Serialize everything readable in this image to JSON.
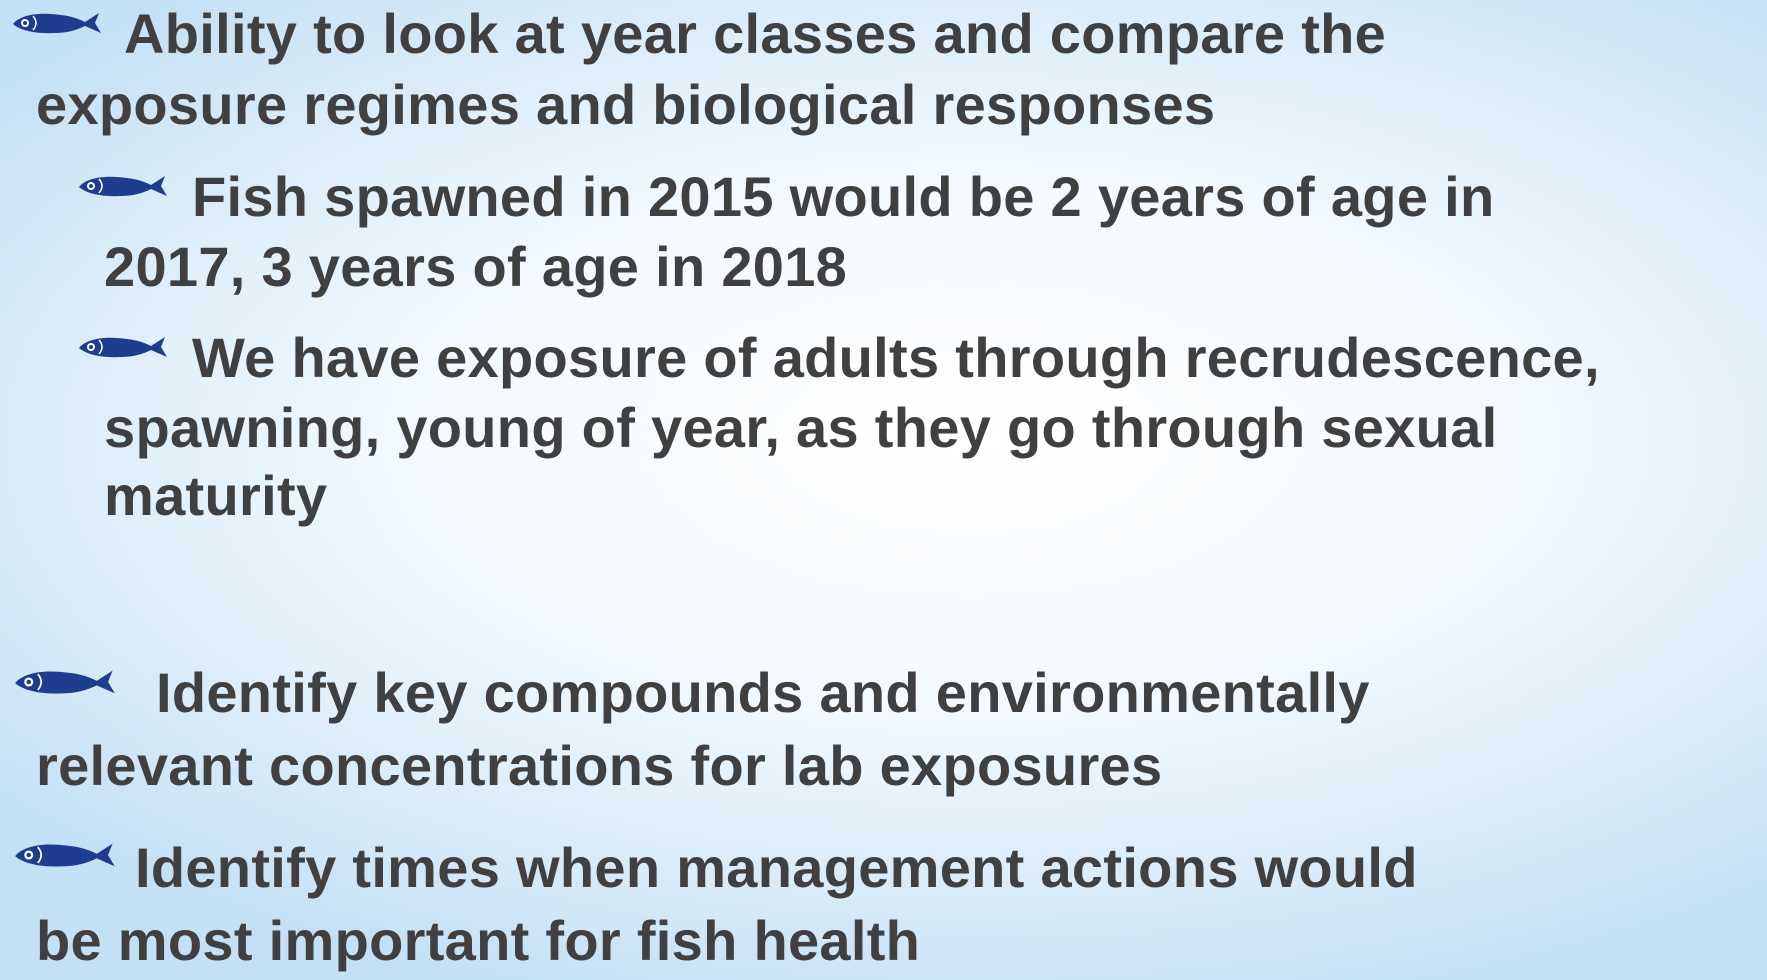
{
  "bullets": [
    {
      "lines": [
        "Ability to look at year classes and compare the",
        "exposure regimes and biological responses"
      ],
      "sub": [
        {
          "lines": [
            "Fish spawned in 2015 would be 2 years of age in",
            "2017, 3 years of age in 2018"
          ]
        },
        {
          "lines": [
            "We have exposure of adults through recrudescence,",
            "spawning, young of year, as they go through sexual",
            "maturity"
          ]
        }
      ]
    },
    {
      "lines": [
        "Identify key compounds and environmentally",
        "relevant concentrations for lab exposures"
      ]
    },
    {
      "lines": [
        "Identify times when management actions would",
        "be most important for fish health"
      ]
    }
  ]
}
